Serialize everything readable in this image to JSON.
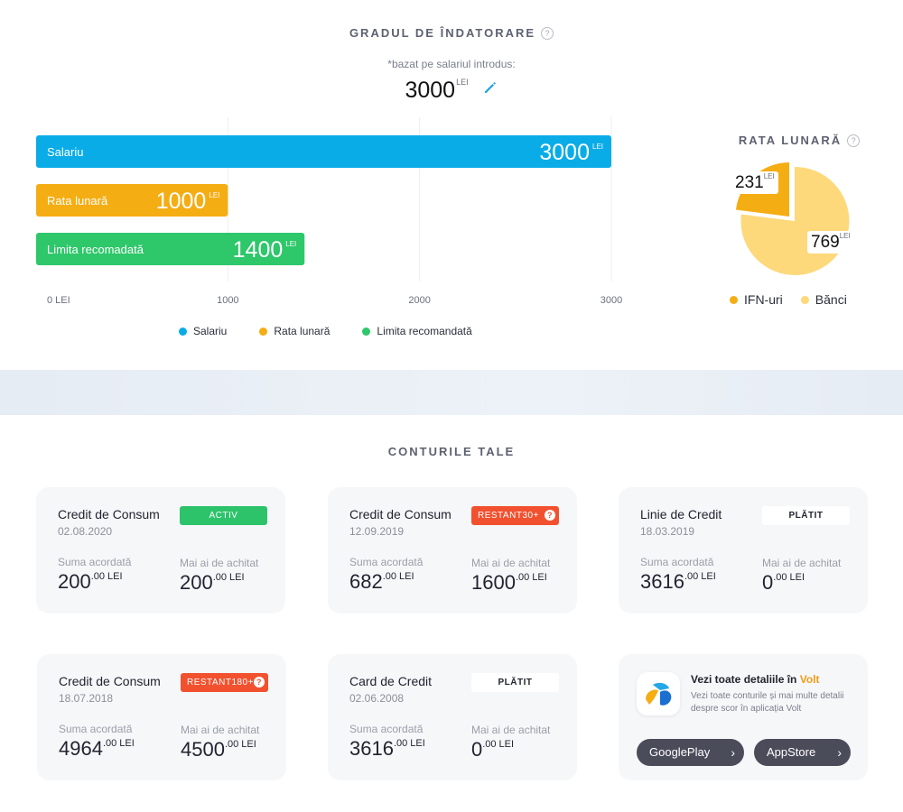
{
  "debt_ratio": {
    "title": "GRADUL DE ÎNDATORARE",
    "help_icon": "?",
    "basis_note": "*bazat pe salariul introdus:",
    "salary_value": "3000",
    "salary_currency": "LEI",
    "edit_icon": "pencil-icon"
  },
  "pie": {
    "title": "RATA LUNARĂ",
    "help_icon": "?",
    "slice_ifn_value": "231",
    "slice_banci_value": "769",
    "currency": "LEI",
    "legend": [
      {
        "label": "IFN-uri",
        "color": "#f5ad14"
      },
      {
        "label": "Bănci",
        "color": "#fdd97b"
      }
    ]
  },
  "chart_data": {
    "type": "bar",
    "orientation": "horizontal",
    "categories": [
      "Salariu",
      "Rata lunară",
      "Limita recomadată"
    ],
    "values": [
      3000,
      1000,
      1400
    ],
    "colors": [
      "#0aace8",
      "#f5ad14",
      "#2ec76a"
    ],
    "value_unit": "LEI",
    "xlim": [
      0,
      3000
    ],
    "x_ticks": [
      {
        "value": 0,
        "label": "0 LEI"
      },
      {
        "value": 1000,
        "label": "1000"
      },
      {
        "value": 2000,
        "label": "2000"
      },
      {
        "value": 3000,
        "label": "3000"
      }
    ],
    "grid": true,
    "legend": {
      "position": "bottom",
      "items": [
        {
          "label": "Salariu",
          "color": "#0aace8"
        },
        {
          "label": "Rata lunară",
          "color": "#f5ad14"
        },
        {
          "label": "Limita recomandată",
          "color": "#2ec76a"
        }
      ]
    }
  },
  "accounts": {
    "title": "CONTURILE TALE",
    "label_granted": "Suma acordată",
    "label_remaining": "Mai ai de achitat",
    "cents": ".00",
    "currency": "LEI",
    "cards": [
      {
        "name": "Credit de Consum",
        "date": "02.08.2020",
        "status": "ACTIV",
        "granted": "200",
        "remaining": "200"
      },
      {
        "name": "Credit de Consum",
        "date": "12.09.2019",
        "status": "RESTANT",
        "status_days": "30+",
        "granted": "682",
        "remaining": "1600"
      },
      {
        "name": "Linie de Credit",
        "date": "18.03.2019",
        "status": "PLĂTIT",
        "granted": "3616",
        "remaining": "0"
      },
      {
        "name": "Credit de Consum",
        "date": "18.07.2018",
        "status": "RESTANT",
        "status_days": "180+",
        "granted": "4964",
        "remaining": "4500"
      },
      {
        "name": "Card de Credit",
        "date": "02.06.2008",
        "status": "PLĂTIT",
        "granted": "3616",
        "remaining": "0"
      }
    ]
  },
  "promo": {
    "title_prefix": "Vezi toate detaliile în ",
    "brand": "Volt",
    "text": "Vezi toate conturile și mai multe detalii despre scor în aplicația Volt",
    "google_play": "GooglePlay",
    "app_store": "AppStore",
    "app_icon": "volt-app-icon"
  }
}
